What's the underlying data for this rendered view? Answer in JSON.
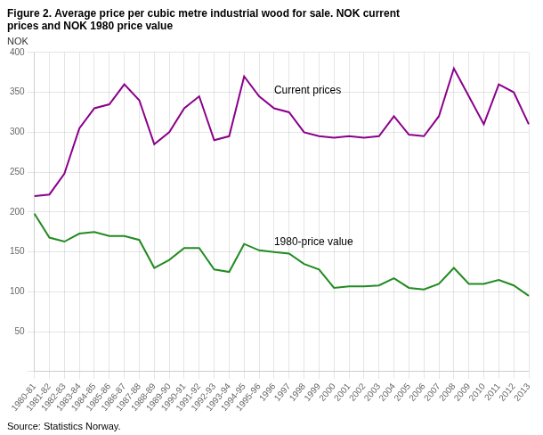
{
  "chart_data": {
    "type": "line",
    "title": [
      "Figure 2. Average price per cubic metre industrial wood for sale. NOK current",
      "prices and NOK 1980 price value"
    ],
    "ylabel": "NOK",
    "source": "Source: Statistics Norway.",
    "categories": [
      "1980-81",
      "1981-82",
      "1982-83",
      "1983-84",
      "1984-85",
      "1985-86",
      "1986-87",
      "1987-88",
      "1988-89",
      "1989-90",
      "1990-91",
      "1991-92",
      "1992-93",
      "1993-94",
      "1994-95",
      "1995-96",
      "1996",
      "1997",
      "1998",
      "1999",
      "2000",
      "2001",
      "2002",
      "2003",
      "2004",
      "2005",
      "2006",
      "2007",
      "2008",
      "2009",
      "2010",
      "2011",
      "2012",
      "2013"
    ],
    "series": [
      {
        "color": "#8B008B",
        "values": [
          220,
          222,
          248,
          305,
          330,
          335,
          360,
          340,
          285,
          300,
          330,
          345,
          290,
          295,
          370,
          345,
          330,
          325,
          300,
          295,
          293,
          295,
          293,
          295,
          320,
          297,
          295,
          320,
          380,
          345,
          310,
          360,
          350,
          310
        ]
      },
      {
        "color": "#228B22",
        "values": [
          198,
          168,
          163,
          173,
          175,
          170,
          170,
          165,
          130,
          140,
          155,
          155,
          128,
          125,
          160,
          152,
          150,
          148,
          135,
          128,
          105,
          107,
          107,
          108,
          117,
          105,
          103,
          110,
          130,
          110,
          110,
          115,
          108,
          95
        ]
      }
    ],
    "annotations": [
      {
        "text": "Current prices",
        "x": "1996",
        "y": 348
      },
      {
        "text": "1980-price value",
        "x": "1996",
        "y": 158
      }
    ],
    "ylim": [
      0,
      400
    ],
    "yticks": [
      {
        "value": 0,
        "label": null
      },
      50,
      100,
      150,
      200,
      250,
      300,
      350,
      400
    ],
    "grid": true
  }
}
